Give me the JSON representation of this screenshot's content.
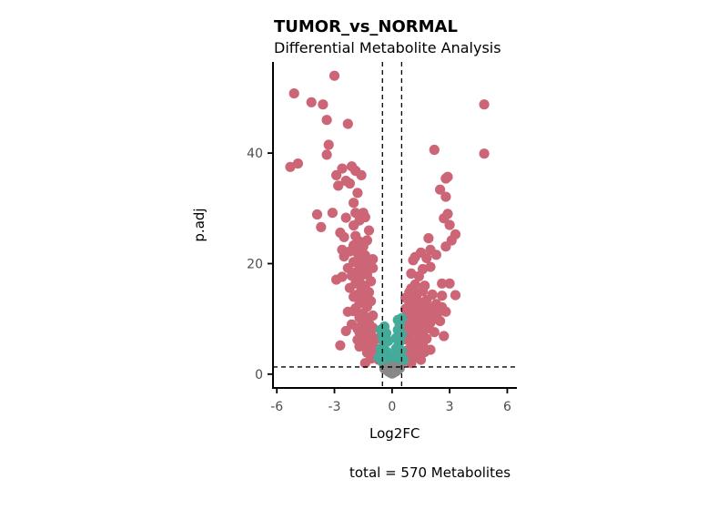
{
  "chart_data": {
    "type": "scatter",
    "title": "TUMOR_vs_NORMAL",
    "subtitle": "Differential Metabolite Analysis",
    "xlabel": "Log2FC",
    "ylabel": "p.adj",
    "caption": "total = 570 Metabolites",
    "xlim": [
      -6.2,
      6.5
    ],
    "ylim": [
      -2.5,
      56.5
    ],
    "x_ticks": [
      -6,
      -3,
      0,
      3,
      6
    ],
    "x_tick_labels": [
      "-6",
      "-3",
      "0",
      "3",
      "6"
    ],
    "y_ticks": [
      0,
      20,
      40
    ],
    "y_tick_labels": [
      "0",
      "20",
      "40"
    ],
    "thresholds": {
      "log2fc": [
        -0.5,
        0.5
      ],
      "p_adj": 1.3
    },
    "grid": false,
    "colors": {
      "significant": "#CC6677",
      "fold_only": "#44AA99",
      "not_significant": "#888888"
    },
    "series": [
      {
        "color_key": "significant",
        "points": [
          [
            -5.1,
            50.8
          ],
          [
            -4.2,
            49.2
          ],
          [
            -3.6,
            48.8
          ],
          [
            -3.0,
            54.0
          ],
          [
            -3.4,
            46.0
          ],
          [
            -2.3,
            45.3
          ],
          [
            -3.3,
            41.5
          ],
          [
            -3.4,
            39.7
          ],
          [
            -5.3,
            37.5
          ],
          [
            -4.9,
            38.1
          ],
          [
            -2.9,
            36.0
          ],
          [
            -2.6,
            37.2
          ],
          [
            -2.1,
            37.6
          ],
          [
            -1.9,
            36.8
          ],
          [
            -1.6,
            36.0
          ],
          [
            -2.4,
            35.0
          ],
          [
            -2.2,
            34.5
          ],
          [
            -2.8,
            34.1
          ],
          [
            -1.8,
            32.8
          ],
          [
            -2.0,
            31.0
          ],
          [
            -1.5,
            29.2
          ],
          [
            -1.9,
            29.2
          ],
          [
            -3.9,
            28.9
          ],
          [
            -3.1,
            29.2
          ],
          [
            -2.4,
            28.3
          ],
          [
            -1.7,
            27.8
          ],
          [
            -1.4,
            28.4
          ],
          [
            -3.7,
            26.6
          ],
          [
            -2.7,
            25.6
          ],
          [
            -1.9,
            25.0
          ],
          [
            -2.5,
            24.8
          ],
          [
            -1.3,
            24.2
          ],
          [
            -1.7,
            24.0
          ],
          [
            -2.0,
            23.3
          ],
          [
            -1.5,
            23.1
          ],
          [
            -2.6,
            22.5
          ],
          [
            -2.2,
            22.2
          ],
          [
            -1.8,
            21.9
          ],
          [
            -1.4,
            21.5
          ],
          [
            -2.5,
            21.3
          ],
          [
            -1.0,
            20.8
          ],
          [
            -1.6,
            20.6
          ],
          [
            -2.0,
            20.3
          ],
          [
            -1.2,
            20.0
          ],
          [
            -1.7,
            19.6
          ],
          [
            -2.3,
            19.2
          ],
          [
            -1.0,
            19.2
          ],
          [
            -1.5,
            18.9
          ],
          [
            -1.9,
            18.4
          ],
          [
            -1.3,
            18.0
          ],
          [
            -2.1,
            17.8
          ],
          [
            -2.6,
            17.6
          ],
          [
            -1.7,
            17.3
          ],
          [
            -2.9,
            17.1
          ],
          [
            -1.1,
            16.8
          ],
          [
            -1.9,
            16.4
          ],
          [
            -1.4,
            16.0
          ],
          [
            -2.2,
            15.6
          ],
          [
            -1.6,
            15.2
          ],
          [
            -1.2,
            14.8
          ],
          [
            -1.8,
            14.4
          ],
          [
            -2.0,
            14.0
          ],
          [
            -1.4,
            13.6
          ],
          [
            -1.1,
            13.2
          ],
          [
            -1.7,
            12.8
          ],
          [
            -1.3,
            12.2
          ],
          [
            -1.9,
            11.9
          ],
          [
            -2.0,
            11.4
          ],
          [
            -2.3,
            11.3
          ],
          [
            -1.5,
            11.0
          ],
          [
            -1.0,
            10.6
          ],
          [
            -1.7,
            10.2
          ],
          [
            -1.3,
            9.8
          ],
          [
            -1.2,
            9.2
          ],
          [
            -1.6,
            8.8
          ],
          [
            -1.0,
            8.4
          ],
          [
            -1.4,
            8.0
          ],
          [
            -1.7,
            7.6
          ],
          [
            -1.1,
            7.2
          ],
          [
            -1.5,
            6.8
          ],
          [
            -0.8,
            6.4
          ],
          [
            -1.3,
            6.0
          ],
          [
            -1.8,
            6.2
          ],
          [
            -1.0,
            5.6
          ],
          [
            -1.5,
            5.2
          ],
          [
            -1.2,
            4.8
          ],
          [
            -1.7,
            5.0
          ],
          [
            -0.9,
            4.4
          ],
          [
            -1.3,
            3.9
          ],
          [
            -0.8,
            3.2
          ],
          [
            -1.1,
            2.8
          ],
          [
            -0.7,
            2.6
          ],
          [
            -1.4,
            2.0
          ],
          [
            -2.7,
            5.2
          ],
          [
            -2.4,
            7.8
          ],
          [
            -2.1,
            9.0
          ],
          [
            -1.8,
            8.2
          ],
          [
            -1.5,
            19.0
          ],
          [
            -1.2,
            26.0
          ],
          [
            -2.0,
            26.9
          ],
          [
            4.8,
            48.8
          ],
          [
            4.8,
            39.9
          ],
          [
            2.2,
            40.6
          ],
          [
            2.9,
            35.7
          ],
          [
            2.8,
            35.4
          ],
          [
            2.5,
            33.4
          ],
          [
            2.8,
            32.1
          ],
          [
            2.7,
            28.2
          ],
          [
            2.9,
            29.0
          ],
          [
            3.0,
            27.0
          ],
          [
            3.3,
            25.3
          ],
          [
            3.1,
            24.2
          ],
          [
            2.8,
            23.1
          ],
          [
            1.9,
            24.6
          ],
          [
            1.5,
            22.0
          ],
          [
            2.0,
            22.5
          ],
          [
            2.3,
            21.6
          ],
          [
            1.8,
            21.0
          ],
          [
            1.2,
            21.2
          ],
          [
            1.1,
            20.6
          ],
          [
            2.0,
            19.4
          ],
          [
            1.6,
            19.0
          ],
          [
            1.0,
            18.2
          ],
          [
            1.4,
            17.7
          ],
          [
            2.6,
            16.4
          ],
          [
            3.0,
            16.4
          ],
          [
            1.2,
            16.2
          ],
          [
            1.7,
            16.0
          ],
          [
            1.0,
            15.5
          ],
          [
            1.6,
            15.0
          ],
          [
            0.9,
            14.8
          ],
          [
            1.3,
            14.5
          ],
          [
            2.1,
            14.4
          ],
          [
            3.3,
            14.3
          ],
          [
            2.6,
            14.2
          ],
          [
            0.7,
            13.8
          ],
          [
            1.1,
            13.6
          ],
          [
            1.8,
            13.4
          ],
          [
            1.4,
            13.1
          ],
          [
            2.3,
            12.7
          ],
          [
            0.9,
            12.6
          ],
          [
            1.6,
            12.3
          ],
          [
            2.0,
            12.0
          ],
          [
            2.6,
            12.1
          ],
          [
            1.2,
            11.9
          ],
          [
            0.8,
            11.4
          ],
          [
            1.9,
            11.3
          ],
          [
            2.4,
            11.2
          ],
          [
            2.8,
            11.3
          ],
          [
            1.4,
            11.0
          ],
          [
            1.1,
            10.6
          ],
          [
            1.7,
            10.4
          ],
          [
            2.2,
            10.3
          ],
          [
            0.8,
            10.0
          ],
          [
            1.5,
            9.8
          ],
          [
            1.2,
            9.4
          ],
          [
            2.0,
            9.3
          ],
          [
            2.5,
            9.6
          ],
          [
            0.9,
            9.0
          ],
          [
            1.6,
            8.8
          ],
          [
            1.3,
            8.4
          ],
          [
            1.9,
            8.3
          ],
          [
            0.7,
            8.2
          ],
          [
            1.1,
            7.8
          ],
          [
            1.6,
            7.5
          ],
          [
            2.2,
            7.6
          ],
          [
            0.9,
            7.2
          ],
          [
            1.4,
            6.9
          ],
          [
            2.7,
            6.9
          ],
          [
            1.8,
            6.4
          ],
          [
            0.8,
            6.2
          ],
          [
            1.2,
            5.8
          ],
          [
            1.6,
            5.4
          ],
          [
            1.0,
            5.0
          ],
          [
            1.4,
            4.6
          ],
          [
            0.8,
            4.3
          ],
          [
            1.7,
            4.0
          ],
          [
            1.1,
            3.6
          ],
          [
            0.6,
            3.4
          ],
          [
            1.3,
            3.1
          ],
          [
            0.9,
            2.8
          ],
          [
            0.7,
            2.4
          ],
          [
            1.0,
            2.0
          ],
          [
            1.5,
            2.6
          ],
          [
            2.0,
            4.4
          ],
          [
            0.6,
            6.8
          ],
          [
            0.6,
            9.6
          ],
          [
            0.7,
            11.8
          ]
        ]
      },
      {
        "color_key": "fold_only",
        "points": [
          [
            -0.3,
            1.8
          ],
          [
            -0.4,
            2.6
          ],
          [
            -0.5,
            3.4
          ],
          [
            -0.3,
            4.1
          ],
          [
            -0.6,
            4.6
          ],
          [
            -0.4,
            5.4
          ],
          [
            -0.2,
            6.0
          ],
          [
            -0.5,
            6.6
          ],
          [
            -0.3,
            7.4
          ],
          [
            -0.6,
            8.0
          ],
          [
            -0.4,
            8.6
          ],
          [
            -0.2,
            3.2
          ],
          [
            -0.7,
            3.0
          ],
          [
            -0.5,
            2.2
          ],
          [
            0.3,
            2.0
          ],
          [
            0.4,
            2.9
          ],
          [
            0.2,
            3.6
          ],
          [
            0.5,
            4.2
          ],
          [
            0.3,
            5.0
          ],
          [
            0.4,
            5.8
          ],
          [
            0.2,
            6.5
          ],
          [
            0.5,
            7.2
          ],
          [
            0.3,
            8.0
          ],
          [
            0.4,
            8.8
          ],
          [
            0.3,
            9.8
          ],
          [
            0.5,
            10.1
          ],
          [
            0.2,
            4.6
          ],
          [
            0.4,
            3.3
          ],
          [
            0.6,
            2.6
          ],
          [
            0.1,
            2.4
          ]
        ]
      },
      {
        "color_key": "not_significant",
        "points": [
          [
            0.0,
            0.1
          ],
          [
            -0.1,
            0.3
          ],
          [
            0.1,
            0.3
          ],
          [
            -0.2,
            0.5
          ],
          [
            0.2,
            0.5
          ],
          [
            0.0,
            0.7
          ],
          [
            -0.3,
            0.8
          ],
          [
            0.3,
            0.8
          ],
          [
            -0.1,
            1.0
          ],
          [
            0.1,
            1.0
          ],
          [
            -0.2,
            1.2
          ],
          [
            0.2,
            1.2
          ],
          [
            0.0,
            1.3
          ],
          [
            -0.4,
            1.0
          ],
          [
            0.4,
            1.1
          ],
          [
            -0.05,
            0.5
          ],
          [
            0.05,
            0.9
          ]
        ]
      }
    ]
  }
}
